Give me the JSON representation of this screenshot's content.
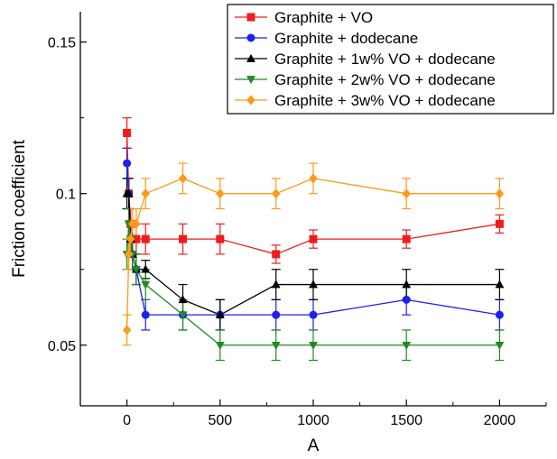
{
  "chart_data": {
    "type": "line",
    "title": "",
    "xlabel": "A",
    "ylabel": "Friction coefficient",
    "xlim": [
      -250,
      2250
    ],
    "ylim": [
      0.03,
      0.16
    ],
    "xticks": [
      0,
      500,
      1000,
      1500,
      2000
    ],
    "yticks": [
      0.05,
      0.1,
      0.15
    ],
    "xtick_labels": [
      "0",
      "500",
      "1000",
      "1500",
      "2000"
    ],
    "ytick_labels": [
      "0.05",
      "0.1",
      "0.15"
    ],
    "grid": false,
    "legend_position": "top-right",
    "series": [
      {
        "name": "Graphite + VO",
        "color": "#ee1c1c",
        "marker": "square",
        "x": [
          0,
          10,
          20,
          30,
          50,
          100,
          300,
          500,
          800,
          1000,
          1500,
          2000
        ],
        "y": [
          0.12,
          0.1,
          0.09,
          0.085,
          0.085,
          0.085,
          0.085,
          0.085,
          0.08,
          0.085,
          0.085,
          0.09
        ],
        "err": [
          0.005,
          0.005,
          0.005,
          0.005,
          0.005,
          0.005,
          0.005,
          0.005,
          0.003,
          0.003,
          0.003,
          0.003
        ]
      },
      {
        "name": "Graphite + dodecane",
        "color": "#1f1ff0",
        "marker": "circle",
        "x": [
          0,
          10,
          20,
          30,
          50,
          100,
          300,
          500,
          800,
          1000,
          1500,
          2000
        ],
        "y": [
          0.11,
          0.1,
          0.085,
          0.08,
          0.075,
          0.06,
          0.06,
          0.06,
          0.06,
          0.06,
          0.065,
          0.06
        ],
        "err": [
          0.005,
          0.005,
          0.005,
          0.005,
          0.005,
          0.005,
          0.005,
          0.005,
          0.005,
          0.005,
          0.005,
          0.005
        ]
      },
      {
        "name": "Graphite + 1w% VO + dodecane",
        "color": "#000000",
        "marker": "triangle-up",
        "x": [
          0,
          10,
          20,
          30,
          50,
          100,
          300,
          500,
          800,
          1000,
          1500,
          2000
        ],
        "y": [
          0.1,
          0.1,
          0.085,
          0.08,
          0.075,
          0.075,
          0.065,
          0.06,
          0.07,
          0.07,
          0.07,
          0.07
        ],
        "err": [
          0.005,
          0.005,
          0.005,
          0.005,
          0.005,
          0.003,
          0.005,
          0.005,
          0.005,
          0.005,
          0.005,
          0.005
        ]
      },
      {
        "name": "Graphite + 2w% VO + dodecane",
        "color": "#1e8c1e",
        "marker": "triangle-down",
        "x": [
          0,
          10,
          20,
          30,
          50,
          100,
          300,
          500,
          800,
          1000,
          1500,
          2000
        ],
        "y": [
          0.08,
          0.09,
          0.085,
          0.08,
          0.075,
          0.07,
          0.06,
          0.05,
          0.05,
          0.05,
          0.05,
          0.05
        ],
        "err": [
          0.005,
          0.005,
          0.005,
          0.005,
          0.005,
          0.005,
          0.005,
          0.005,
          0.005,
          0.005,
          0.005,
          0.005
        ]
      },
      {
        "name": "Graphite + 3w% VO + dodecane",
        "color": "#ff9a1a",
        "marker": "diamond",
        "x": [
          0,
          10,
          20,
          30,
          50,
          100,
          300,
          500,
          800,
          1000,
          1500,
          2000
        ],
        "y": [
          0.055,
          0.08,
          0.085,
          0.09,
          0.09,
          0.1,
          0.105,
          0.1,
          0.1,
          0.105,
          0.1,
          0.1
        ],
        "err": [
          0.005,
          0.005,
          0.005,
          0.005,
          0.005,
          0.005,
          0.005,
          0.005,
          0.005,
          0.005,
          0.005,
          0.005
        ]
      }
    ]
  }
}
